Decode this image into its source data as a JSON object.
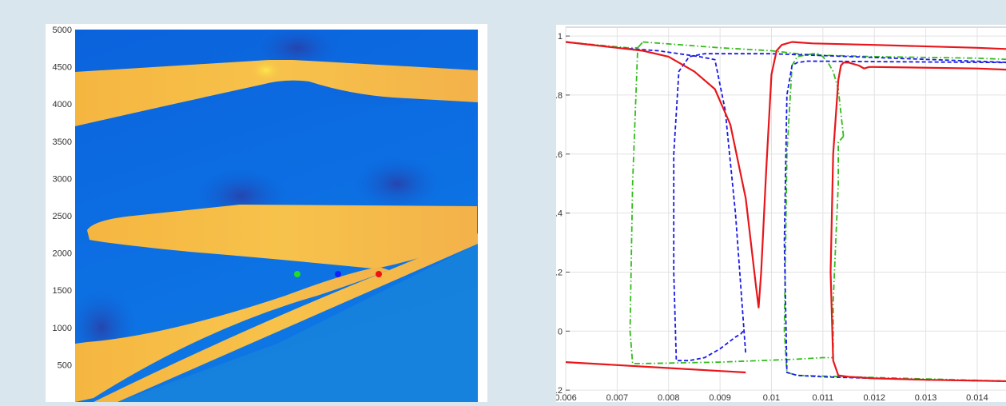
{
  "chart_data": [
    {
      "type": "heatmap",
      "title": "",
      "xlabel": "",
      "ylabel": "",
      "ylim": [
        0,
        5000
      ],
      "yticks": [
        500,
        1000,
        1500,
        2000,
        2500,
        3000,
        3500,
        4000,
        4500,
        5000
      ],
      "colormap": [
        "#2b3fa6",
        "#0a6fe0",
        "#f6c24a",
        "#fde64a"
      ],
      "markers": [
        {
          "color": "#22dd22",
          "label": "green probe"
        },
        {
          "color": "#1122ff",
          "label": "blue probe"
        },
        {
          "color": "#ee1111",
          "label": "red probe"
        }
      ]
    },
    {
      "type": "line",
      "title": "",
      "xlabel": "",
      "ylabel": "",
      "xlim": [
        0.006,
        0.0147
      ],
      "ylim": [
        -0.27,
        1.03
      ],
      "xticks": [
        0.006,
        0.007,
        0.008,
        0.009,
        0.01,
        0.011,
        0.012,
        0.013,
        0.014
      ],
      "xtick_labels": [
        "0.006",
        "0.007",
        "0.008",
        "0.009",
        "0.01",
        "0.011",
        "0.012",
        "0.013",
        "0.014"
      ],
      "yticks": [
        -0.2,
        0,
        0.2,
        0.4,
        0.6,
        0.8,
        1
      ],
      "ytick_labels": [
        "-0.2",
        "0",
        "0.2",
        "0.4",
        "0.6",
        "0.8",
        "1"
      ],
      "grid": true,
      "series": [
        {
          "color": "#e8161b",
          "style": "solid",
          "segments": [
            {
              "x": [
                0.006,
                0.007,
                0.0075,
                0.008,
                0.0085,
                0.0089,
                0.0092,
                0.0095,
                0.0097,
                0.00975,
                0.0098,
                0.0099,
                0.01,
                0.0101,
                0.0102,
                0.0104,
                0.0108,
                0.012,
                0.014,
                0.0147
              ],
              "y": [
                0.98,
                0.96,
                0.95,
                0.93,
                0.88,
                0.82,
                0.7,
                0.45,
                0.15,
                0.08,
                0.2,
                0.55,
                0.87,
                0.95,
                0.97,
                0.98,
                0.975,
                0.97,
                0.96,
                0.955
              ]
            },
            {
              "x": [
                0.006,
                0.007,
                0.008,
                0.009,
                0.0095
              ],
              "y": [
                -0.105,
                -0.115,
                -0.125,
                -0.135,
                -0.14
              ]
            },
            {
              "x": [
                0.0147,
                0.014,
                0.013,
                0.012,
                0.0115,
                0.0113,
                0.0112,
                0.01115,
                0.0112,
                0.0113,
                0.01135,
                0.0114,
                0.0115,
                0.0117,
                0.0118,
                0.0119,
                0.012,
                0.014,
                0.0147
              ],
              "y": [
                -0.17,
                -0.168,
                -0.165,
                -0.16,
                -0.155,
                -0.15,
                -0.1,
                0.2,
                0.6,
                0.85,
                0.9,
                0.91,
                0.91,
                0.9,
                0.89,
                0.895,
                0.895,
                0.89,
                0.885
              ]
            }
          ]
        },
        {
          "color": "#1a1ae6",
          "style": "dashed",
          "segments": [
            {
              "x": [
                0.006,
                0.007,
                0.0078,
                0.0082,
                0.0086,
                0.0089,
                0.0091,
                0.0093,
                0.0095
              ],
              "y": [
                0.98,
                0.96,
                0.95,
                0.94,
                0.93,
                0.92,
                0.75,
                0.4,
                -0.08
              ]
            },
            {
              "x": [
                0.00945,
                0.0094,
                0.0093,
                0.009,
                0.0087,
                0.0084,
                0.00815,
                0.0081,
                0.0081,
                0.0082,
                0.0084,
                0.0087,
                0.01,
                0.0147
              ],
              "y": [
                0.0,
                -0.01,
                -0.02,
                -0.06,
                -0.09,
                -0.1,
                -0.1,
                0.2,
                0.6,
                0.88,
                0.93,
                0.94,
                0.94,
                0.91
              ]
            },
            {
              "x": [
                0.0147,
                0.013,
                0.012,
                0.011,
                0.0105,
                0.0103,
                0.01025,
                0.0103,
                0.0104,
                0.0105,
                0.0107,
                0.0147
              ],
              "y": [
                -0.17,
                -0.165,
                -0.16,
                -0.155,
                -0.15,
                -0.14,
                0.3,
                0.8,
                0.9,
                0.91,
                0.915,
                0.91
              ]
            }
          ]
        },
        {
          "color": "#33bb1c",
          "style": "dashdot",
          "segments": [
            {
              "x": [
                0.006,
                0.0072,
                0.0074,
                0.0075,
                0.0074,
                0.0073,
                0.00725,
                0.0073,
                0.0075,
                0.009,
                0.0105,
                0.011,
                0.0112,
                0.0112,
                0.0113,
                0.0113,
                0.0114
              ],
              "y": [
                0.98,
                0.96,
                0.96,
                0.98,
                0.96,
                0.5,
                0.0,
                -0.11,
                -0.11,
                -0.105,
                -0.095,
                -0.09,
                -0.09,
                0.1,
                0.5,
                0.64,
                0.66
              ]
            },
            {
              "x": [
                0.0114,
                0.0113,
                0.0112,
                0.0111,
                0.011,
                0.0109,
                0.0108,
                0.0105,
                0.0104,
                0.0103,
                0.01025,
                0.0103,
                0.0105,
                0.0147
              ],
              "y": [
                0.66,
                0.82,
                0.88,
                0.91,
                0.93,
                0.94,
                0.94,
                0.93,
                0.9,
                0.6,
                0.0,
                -0.14,
                -0.15,
                -0.17
              ]
            },
            {
              "x": [
                0.0075,
                0.009,
                0.01,
                0.0105,
                0.011,
                0.012,
                0.014,
                0.0147
              ],
              "y": [
                0.98,
                0.96,
                0.95,
                0.94,
                0.935,
                0.93,
                0.925,
                0.92
              ]
            }
          ]
        }
      ]
    }
  ]
}
